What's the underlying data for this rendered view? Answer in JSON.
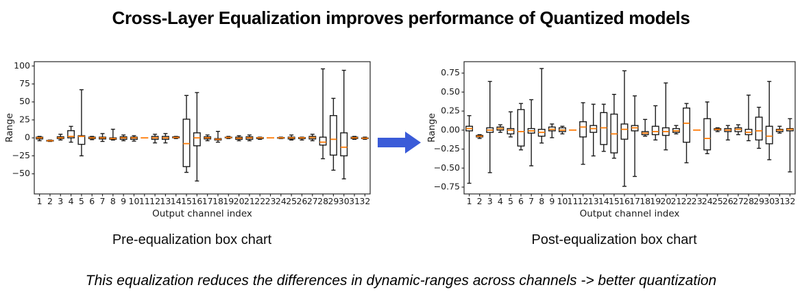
{
  "title": "Cross-Layer Equalization improves performance of Quantized models",
  "note": "This equalization reduces the differences in dynamic-ranges across channels -> better quantization",
  "arrow_color": "#3a5bd8",
  "chart_data": [
    {
      "type": "boxplot",
      "caption": "Pre-equalization box chart",
      "xlabel": "Output channel index",
      "ylabel": "Range",
      "categories": [
        1,
        2,
        3,
        4,
        5,
        6,
        7,
        8,
        9,
        10,
        11,
        12,
        13,
        14,
        15,
        16,
        17,
        18,
        19,
        20,
        21,
        22,
        23,
        24,
        25,
        26,
        27,
        28,
        29,
        30,
        31,
        32
      ],
      "ylim": [
        -78,
        106
      ],
      "yticks": [
        100,
        75,
        50,
        25,
        0,
        -25,
        -50
      ],
      "ytick_labels": [
        "100",
        "75",
        "50",
        "25",
        "0",
        "−25",
        "−50"
      ],
      "grid": false,
      "legend": null,
      "median_color": "#ff7f0e",
      "box_fill": "#ffffff",
      "line_color": "#1a1a1a",
      "boxes": [
        [
          -4,
          -1.5,
          0,
          1,
          2
        ],
        [
          -5,
          -4.5,
          -4,
          -3.5,
          -3
        ],
        [
          -3,
          -1,
          0,
          1.5,
          5
        ],
        [
          -6,
          0,
          2,
          10,
          16
        ],
        [
          -25,
          -9,
          2,
          3,
          67
        ],
        [
          -2.5,
          -1,
          0,
          1,
          2
        ],
        [
          -5,
          -1.5,
          0,
          1,
          6
        ],
        [
          -3,
          -2,
          -1,
          0,
          12
        ],
        [
          -4,
          -2,
          0,
          1.5,
          4
        ],
        [
          -4.5,
          -2,
          0,
          1,
          3
        ],
        [
          0,
          0,
          0,
          0,
          0
        ],
        [
          -7,
          -2,
          0,
          2,
          5
        ],
        [
          -7,
          -2,
          0,
          2,
          6
        ],
        [
          -1,
          0,
          0.5,
          1.5,
          2
        ],
        [
          -48,
          -40,
          -8,
          26,
          59
        ],
        [
          -60,
          -11,
          0,
          7,
          63
        ],
        [
          -4,
          -1.5,
          0,
          1.5,
          4
        ],
        [
          -6,
          -3,
          -2,
          -1,
          9
        ],
        [
          -1,
          0,
          0.5,
          1,
          2
        ],
        [
          -4,
          -2,
          -0.5,
          1,
          3
        ],
        [
          -4,
          -2,
          0,
          1.5,
          4
        ],
        [
          -2,
          -1,
          0,
          0.5,
          1
        ],
        [
          0,
          0,
          0,
          0,
          0
        ],
        [
          -1,
          -0.5,
          0,
          0.5,
          1
        ],
        [
          -3,
          -1.5,
          0,
          1,
          4
        ],
        [
          -3,
          -1,
          0,
          0.5,
          1
        ],
        [
          -4,
          -1.5,
          0.5,
          2,
          5
        ],
        [
          -29,
          -10,
          -6,
          1,
          96
        ],
        [
          -45,
          -24,
          -2,
          31,
          55
        ],
        [
          -57,
          -25,
          -13,
          7,
          94
        ],
        [
          -2,
          -1,
          0,
          1,
          2
        ],
        [
          -2,
          -1,
          -0.5,
          0,
          1
        ]
      ]
    },
    {
      "type": "boxplot",
      "caption": "Post-equalization box chart",
      "xlabel": "Output channel index",
      "ylabel": "Range",
      "categories": [
        1,
        2,
        3,
        4,
        5,
        6,
        7,
        8,
        9,
        10,
        11,
        12,
        13,
        14,
        15,
        16,
        17,
        18,
        19,
        20,
        21,
        22,
        23,
        24,
        25,
        26,
        27,
        28,
        29,
        30,
        31,
        32
      ],
      "ylim": [
        -0.84,
        0.9
      ],
      "yticks": [
        0.75,
        0.5,
        0.25,
        0.0,
        -0.25,
        -0.5,
        -0.75
      ],
      "ytick_labels": [
        "0.75",
        "0.50",
        "0.25",
        "0.00",
        "−0.25",
        "−0.50",
        "−0.75"
      ],
      "grid": false,
      "legend": null,
      "median_color": "#ff7f0e",
      "box_fill": "#ffffff",
      "line_color": "#1a1a1a",
      "boxes": [
        [
          -0.7,
          -0.01,
          0.02,
          0.05,
          0.19
        ],
        [
          -0.11,
          -0.09,
          -0.08,
          -0.07,
          -0.06
        ],
        [
          -0.56,
          -0.03,
          0.0,
          0.03,
          0.64
        ],
        [
          -0.03,
          0.0,
          0.02,
          0.04,
          0.07
        ],
        [
          -0.09,
          -0.05,
          0.0,
          0.02,
          0.24
        ],
        [
          -0.26,
          -0.21,
          -0.02,
          0.27,
          0.35
        ],
        [
          -0.47,
          -0.04,
          -0.01,
          0.02,
          0.4
        ],
        [
          -0.17,
          -0.08,
          -0.03,
          0.01,
          0.81
        ],
        [
          -0.1,
          -0.01,
          0.01,
          0.04,
          0.08
        ],
        [
          -0.05,
          -0.02,
          0.0,
          0.03,
          0.05
        ],
        [
          0,
          0,
          0,
          0,
          0
        ],
        [
          -0.45,
          -0.09,
          0.04,
          0.11,
          0.36
        ],
        [
          -0.34,
          -0.03,
          0.02,
          0.06,
          0.34
        ],
        [
          -0.28,
          -0.19,
          0.03,
          0.23,
          0.34
        ],
        [
          -0.37,
          -0.3,
          -0.05,
          0.21,
          0.47
        ],
        [
          -0.74,
          -0.12,
          0.01,
          0.08,
          0.78
        ],
        [
          -0.61,
          -0.01,
          0.03,
          0.06,
          0.45
        ],
        [
          -0.08,
          -0.06,
          -0.04,
          -0.02,
          0.14
        ],
        [
          -0.13,
          -0.06,
          -0.02,
          0.05,
          0.32
        ],
        [
          -0.26,
          -0.07,
          -0.02,
          0.03,
          0.62
        ],
        [
          -0.05,
          -0.03,
          -0.01,
          0.02,
          0.06
        ],
        [
          -0.43,
          -0.16,
          0.09,
          0.29,
          0.35
        ],
        [
          0,
          0,
          0,
          0,
          0
        ],
        [
          -0.31,
          -0.26,
          -0.11,
          0.15,
          0.37
        ],
        [
          -0.02,
          0.0,
          0.01,
          0.02,
          0.03
        ],
        [
          -0.13,
          -0.02,
          0.0,
          0.02,
          0.06
        ],
        [
          -0.06,
          -0.02,
          0.01,
          0.03,
          0.07
        ],
        [
          -0.14,
          -0.06,
          -0.03,
          0.01,
          0.46
        ],
        [
          -0.24,
          -0.13,
          -0.01,
          0.17,
          0.3
        ],
        [
          -0.39,
          -0.18,
          -0.08,
          0.05,
          0.64
        ],
        [
          -0.04,
          -0.02,
          0.0,
          0.01,
          0.05
        ],
        [
          -0.55,
          -0.01,
          0.01,
          0.02,
          0.15
        ]
      ]
    }
  ]
}
